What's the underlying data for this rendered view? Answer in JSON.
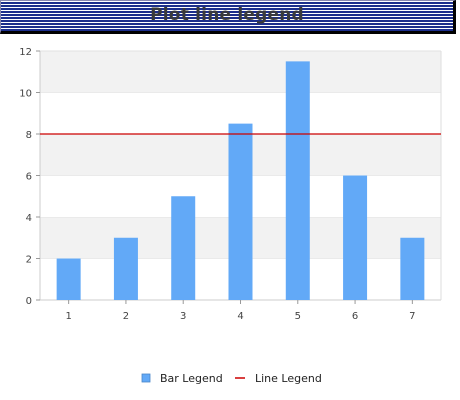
{
  "title": "Plot line legend",
  "chart_data": {
    "type": "bar",
    "categories": [
      "1",
      "2",
      "3",
      "4",
      "5",
      "6",
      "7"
    ],
    "series": [
      {
        "name": "Bar Legend",
        "type": "bar",
        "values": [
          2,
          3,
          5,
          8.5,
          11.5,
          6,
          3
        ],
        "color": "#62a9f7"
      },
      {
        "name": "Line Legend",
        "type": "line",
        "value": 8,
        "color": "#cc0000"
      }
    ],
    "ylim": [
      0,
      12
    ],
    "yticks": [
      0,
      2,
      4,
      6,
      8,
      10,
      12
    ],
    "grid": true,
    "band_colors": [
      "#f2f2f2",
      "#ffffff"
    ],
    "legend": "bottom"
  }
}
